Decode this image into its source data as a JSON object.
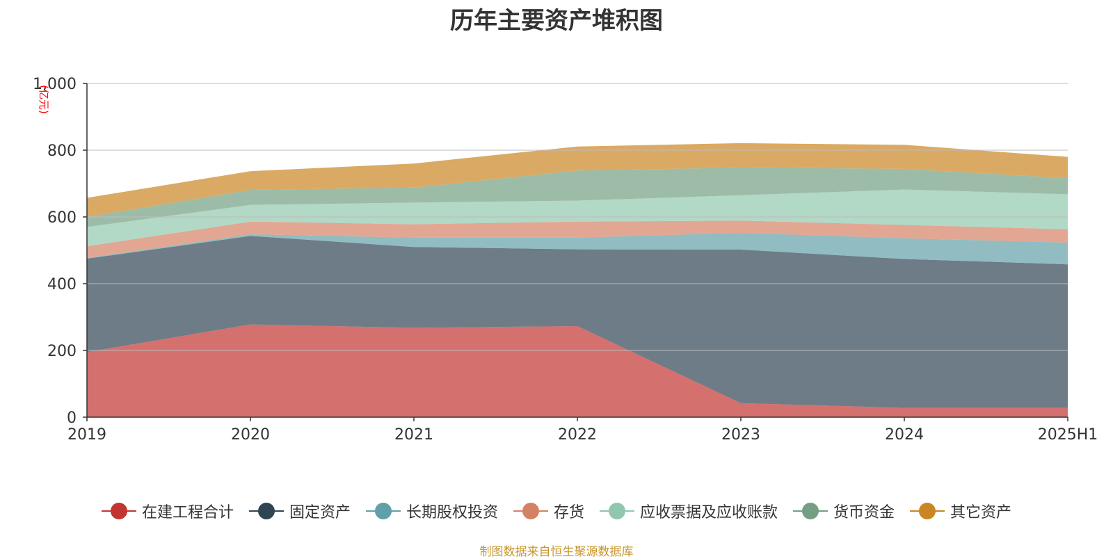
{
  "chart_data": {
    "type": "area",
    "stacked": true,
    "title": "历年主要资产堆积图",
    "ylabel": "(亿元)",
    "xlabel": "",
    "categories": [
      "2019",
      "2020",
      "2021",
      "2022",
      "2023",
      "2024",
      "2025H1"
    ],
    "ylim": [
      0,
      1000
    ],
    "yticks": [
      0,
      200,
      400,
      600,
      800,
      "1,000"
    ],
    "grid": true,
    "legend_position": "bottom",
    "series": [
      {
        "name": "在建工程合计",
        "color": "#c23531",
        "values": [
          195,
          278,
          268,
          273,
          42,
          28,
          28
        ]
      },
      {
        "name": "固定资产",
        "color": "#2f4554",
        "values": [
          280,
          265,
          242,
          230,
          460,
          446,
          430
        ]
      },
      {
        "name": "长期股权投资",
        "color": "#61a0a8",
        "values": [
          2,
          5,
          28,
          35,
          50,
          62,
          65
        ]
      },
      {
        "name": "存货",
        "color": "#d48265",
        "values": [
          35,
          38,
          40,
          48,
          37,
          40,
          40
        ]
      },
      {
        "name": "应收票据及应收账款",
        "color": "#91c7ae",
        "values": [
          58,
          50,
          65,
          63,
          76,
          106,
          105
        ]
      },
      {
        "name": "货币资金",
        "color": "#749f83",
        "values": [
          30,
          45,
          45,
          90,
          83,
          62,
          48
        ]
      },
      {
        "name": "其它资产",
        "color": "#ca8622",
        "values": [
          57,
          56,
          72,
          72,
          73,
          72,
          64
        ]
      }
    ]
  },
  "source_note": "制图数据来自恒生聚源数据库"
}
